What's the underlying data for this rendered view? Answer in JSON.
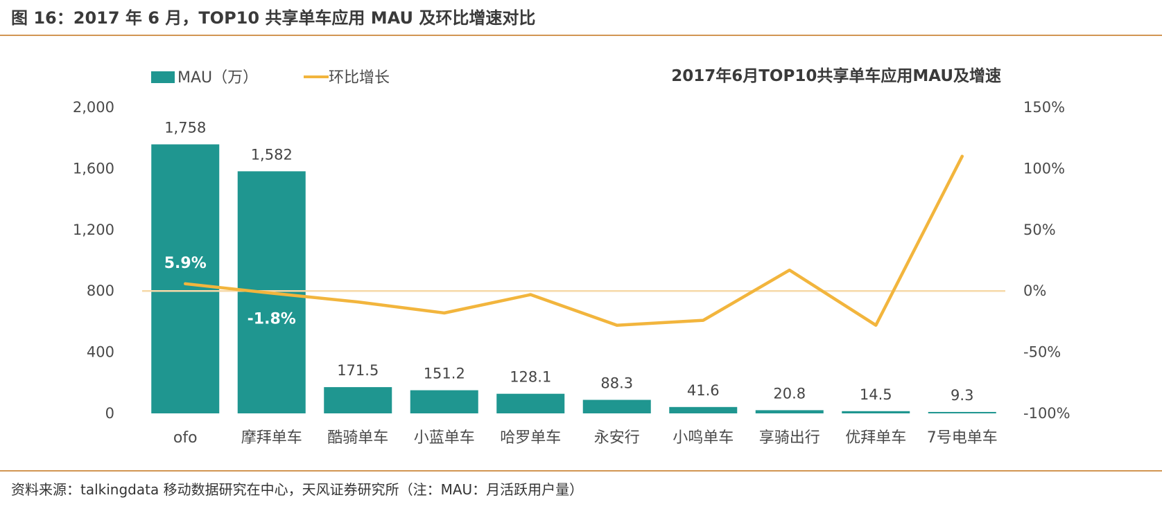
{
  "figure": {
    "title": "图 16：2017 年 6 月，TOP10 共享单车应用 MAU 及环比增速对比",
    "source": "资料来源：talkingdata 移动数据研究在中心，天风证券研究所（注：MAU：月活跃用户量）"
  },
  "colors": {
    "bar": "#1f9690",
    "line": "#f2b53d",
    "rule": "#d19552",
    "zero_line": "#f6d9a8"
  },
  "chart_data": {
    "type": "bar",
    "title": "2017年6月TOP10共享单车应用MAU及增速",
    "categories": [
      "ofo",
      "摩拜单车",
      "酷骑单车",
      "小蓝单车",
      "哈罗单车",
      "永安行",
      "小鸣单车",
      "享骑出行",
      "优拜单车",
      "7号电单车"
    ],
    "series": [
      {
        "name": "MAU（万）",
        "type": "bar",
        "axis": "left",
        "values": [
          1758,
          1582,
          171.5,
          151.2,
          128.1,
          88.3,
          41.6,
          20.8,
          14.5,
          9.3
        ],
        "labels": [
          "1,758",
          "1,582",
          "171.5",
          "151.2",
          "128.1",
          "88.3",
          "41.6",
          "20.8",
          "14.5",
          "9.3"
        ]
      },
      {
        "name": "环比增长",
        "type": "line",
        "axis": "right",
        "values": [
          5.9,
          -1.8,
          -9,
          -18,
          -3,
          -28,
          -24,
          17,
          -28,
          110
        ],
        "labels": [
          "5.9%",
          "-1.8%",
          null,
          null,
          null,
          null,
          null,
          null,
          null,
          null
        ]
      }
    ],
    "y_left": {
      "ylim": [
        0,
        2000
      ],
      "ticks": [
        0,
        400,
        800,
        1200,
        1600,
        2000
      ],
      "tick_labels": [
        "0",
        "400",
        "800",
        "1,200",
        "1,600",
        "2,000"
      ]
    },
    "y_right": {
      "ylim": [
        -100,
        150
      ],
      "ticks": [
        -100,
        -50,
        0,
        50,
        100,
        150
      ],
      "tick_labels": [
        "-100%",
        "-50%",
        "0%",
        "50%",
        "100%",
        "150%"
      ]
    },
    "legend_position": "top-left",
    "grid": false
  }
}
